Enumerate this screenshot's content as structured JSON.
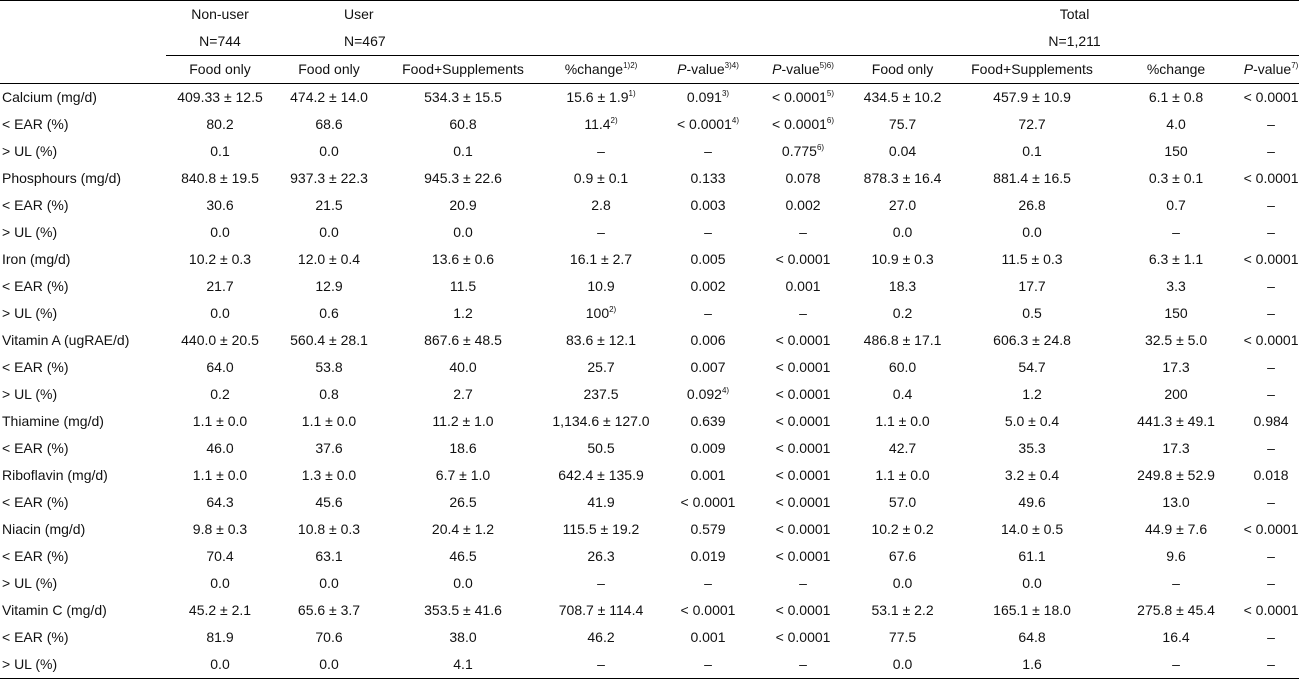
{
  "header": {
    "group_nonuser": "Non-user",
    "group_user": "User",
    "group_total": "Total",
    "n_nonuser": "N=744",
    "n_user": "N=467",
    "n_total": "N=1,211"
  },
  "subheaders": [
    {
      "text": "Food only",
      "it": "",
      "sup": ""
    },
    {
      "text": "Food only",
      "it": "",
      "sup": ""
    },
    {
      "text": "Food+Supplements",
      "it": "",
      "sup": ""
    },
    {
      "text": "%change",
      "it": "",
      "sup": "1)2)"
    },
    {
      "text": "-value",
      "it": "P",
      "sup": "3)4)"
    },
    {
      "text": "-value",
      "it": "P",
      "sup": "5)6)"
    },
    {
      "text": "Food only",
      "it": "",
      "sup": ""
    },
    {
      "text": "Food+Supplements",
      "it": "",
      "sup": ""
    },
    {
      "text": "%change",
      "it": "",
      "sup": ""
    },
    {
      "text": "-value",
      "it": "P",
      "sup": "7)"
    }
  ],
  "rows": [
    {
      "label": "Calcium (mg/d)",
      "cells": [
        {
          "v": "409.33 ± 12.5"
        },
        {
          "v": "474.2 ± 14.0"
        },
        {
          "v": "534.3 ± 15.5"
        },
        {
          "v": "15.6 ± 1.9",
          "s": "1)"
        },
        {
          "v": "0.091",
          "s": "3)"
        },
        {
          "v": "< 0.0001",
          "s": "5)"
        },
        {
          "v": "434.5 ± 10.2"
        },
        {
          "v": "457.9 ± 10.9"
        },
        {
          "v": "6.1 ± 0.8"
        },
        {
          "v": "< 0.0001"
        }
      ]
    },
    {
      "label": "< EAR (%)",
      "cells": [
        {
          "v": "80.2"
        },
        {
          "v": "68.6"
        },
        {
          "v": "60.8"
        },
        {
          "v": "11.4",
          "s": "2)"
        },
        {
          "v": "< 0.0001",
          "s": "4)"
        },
        {
          "v": "< 0.0001",
          "s": "6)"
        },
        {
          "v": "75.7"
        },
        {
          "v": "72.7"
        },
        {
          "v": "4.0"
        },
        {
          "v": "–"
        }
      ]
    },
    {
      "label": "> UL (%)",
      "cells": [
        {
          "v": "0.1"
        },
        {
          "v": "0.0"
        },
        {
          "v": "0.1"
        },
        {
          "v": "–"
        },
        {
          "v": "–"
        },
        {
          "v": "0.775",
          "s": "6)"
        },
        {
          "v": "0.04"
        },
        {
          "v": "0.1"
        },
        {
          "v": "150"
        },
        {
          "v": "–"
        }
      ]
    },
    {
      "label": "Phosphours (mg/d)",
      "cells": [
        {
          "v": "840.8 ± 19.5"
        },
        {
          "v": "937.3 ± 22.3"
        },
        {
          "v": "945.3 ± 22.6"
        },
        {
          "v": "0.9 ± 0.1"
        },
        {
          "v": "0.133"
        },
        {
          "v": "0.078"
        },
        {
          "v": "878.3 ± 16.4"
        },
        {
          "v": "881.4 ± 16.5"
        },
        {
          "v": "0.3 ± 0.1"
        },
        {
          "v": "< 0.0001"
        }
      ]
    },
    {
      "label": "< EAR (%)",
      "cells": [
        {
          "v": "30.6"
        },
        {
          "v": "21.5"
        },
        {
          "v": "20.9"
        },
        {
          "v": "2.8"
        },
        {
          "v": "0.003"
        },
        {
          "v": "0.002"
        },
        {
          "v": "27.0"
        },
        {
          "v": "26.8"
        },
        {
          "v": "0.7"
        },
        {
          "v": "–"
        }
      ]
    },
    {
      "label": "> UL (%)",
      "cells": [
        {
          "v": "0.0"
        },
        {
          "v": "0.0"
        },
        {
          "v": "0.0"
        },
        {
          "v": "–"
        },
        {
          "v": "–"
        },
        {
          "v": "–"
        },
        {
          "v": "0.0"
        },
        {
          "v": "0.0"
        },
        {
          "v": "–"
        },
        {
          "v": "–"
        }
      ]
    },
    {
      "label": "Iron (mg/d)",
      "cells": [
        {
          "v": "10.2 ± 0.3"
        },
        {
          "v": "12.0 ± 0.4"
        },
        {
          "v": "13.6 ± 0.6"
        },
        {
          "v": "16.1 ± 2.7"
        },
        {
          "v": "0.005"
        },
        {
          "v": "< 0.0001"
        },
        {
          "v": "10.9 ± 0.3"
        },
        {
          "v": "11.5 ± 0.3"
        },
        {
          "v": "6.3 ± 1.1"
        },
        {
          "v": "< 0.0001"
        }
      ]
    },
    {
      "label": "< EAR (%)",
      "cells": [
        {
          "v": "21.7"
        },
        {
          "v": "12.9"
        },
        {
          "v": "11.5"
        },
        {
          "v": "10.9"
        },
        {
          "v": "0.002"
        },
        {
          "v": "0.001"
        },
        {
          "v": "18.3"
        },
        {
          "v": "17.7"
        },
        {
          "v": "3.3"
        },
        {
          "v": "–"
        }
      ]
    },
    {
      "label": "> UL (%)",
      "cells": [
        {
          "v": "0.0"
        },
        {
          "v": "0.6"
        },
        {
          "v": "1.2"
        },
        {
          "v": "100",
          "s": "2)"
        },
        {
          "v": "–"
        },
        {
          "v": "–"
        },
        {
          "v": "0.2"
        },
        {
          "v": "0.5"
        },
        {
          "v": "150"
        },
        {
          "v": "–"
        }
      ]
    },
    {
      "label": "Vitamin A (ugRAE/d)",
      "cells": [
        {
          "v": "440.0 ± 20.5"
        },
        {
          "v": "560.4 ± 28.1"
        },
        {
          "v": "867.6 ± 48.5"
        },
        {
          "v": "83.6 ± 12.1"
        },
        {
          "v": "0.006"
        },
        {
          "v": "< 0.0001"
        },
        {
          "v": "486.8 ± 17.1"
        },
        {
          "v": "606.3 ± 24.8"
        },
        {
          "v": "32.5 ± 5.0"
        },
        {
          "v": "< 0.0001"
        }
      ]
    },
    {
      "label": "< EAR (%)",
      "cells": [
        {
          "v": "64.0"
        },
        {
          "v": "53.8"
        },
        {
          "v": "40.0"
        },
        {
          "v": "25.7"
        },
        {
          "v": "0.007"
        },
        {
          "v": "< 0.0001"
        },
        {
          "v": "60.0"
        },
        {
          "v": "54.7"
        },
        {
          "v": "17.3"
        },
        {
          "v": "–"
        }
      ]
    },
    {
      "label": "> UL (%)",
      "cells": [
        {
          "v": "0.2"
        },
        {
          "v": "0.8"
        },
        {
          "v": "2.7"
        },
        {
          "v": "237.5"
        },
        {
          "v": "0.092",
          "s": "4)"
        },
        {
          "v": "< 0.0001"
        },
        {
          "v": "0.4"
        },
        {
          "v": "1.2"
        },
        {
          "v": "200"
        },
        {
          "v": "–"
        }
      ]
    },
    {
      "label": "Thiamine (mg/d)",
      "cells": [
        {
          "v": "1.1 ± 0.0"
        },
        {
          "v": "1.1 ± 0.0"
        },
        {
          "v": "11.2 ± 1.0"
        },
        {
          "v": "1,134.6 ± 127.0"
        },
        {
          "v": "0.639"
        },
        {
          "v": "< 0.0001"
        },
        {
          "v": "1.1 ± 0.0"
        },
        {
          "v": "5.0 ± 0.4"
        },
        {
          "v": "441.3 ± 49.1"
        },
        {
          "v": "0.984"
        }
      ]
    },
    {
      "label": "< EAR (%)",
      "cells": [
        {
          "v": "46.0"
        },
        {
          "v": "37.6"
        },
        {
          "v": "18.6"
        },
        {
          "v": "50.5"
        },
        {
          "v": "0.009"
        },
        {
          "v": "< 0.0001"
        },
        {
          "v": "42.7"
        },
        {
          "v": "35.3"
        },
        {
          "v": "17.3"
        },
        {
          "v": "–"
        }
      ]
    },
    {
      "label": "Riboflavin (mg/d)",
      "cells": [
        {
          "v": "1.1 ± 0.0"
        },
        {
          "v": "1.3 ± 0.0"
        },
        {
          "v": "6.7 ± 1.0"
        },
        {
          "v": "642.4 ± 135.9"
        },
        {
          "v": "0.001"
        },
        {
          "v": "< 0.0001"
        },
        {
          "v": "1.1 ± 0.0"
        },
        {
          "v": "3.2 ± 0.4"
        },
        {
          "v": "249.8 ± 52.9"
        },
        {
          "v": "0.018"
        }
      ]
    },
    {
      "label": "< EAR (%)",
      "cells": [
        {
          "v": "64.3"
        },
        {
          "v": "45.6"
        },
        {
          "v": "26.5"
        },
        {
          "v": "41.9"
        },
        {
          "v": "< 0.0001"
        },
        {
          "v": "< 0.0001"
        },
        {
          "v": "57.0"
        },
        {
          "v": "49.6"
        },
        {
          "v": "13.0"
        },
        {
          "v": "–"
        }
      ]
    },
    {
      "label": "Niacin (mg/d)",
      "cells": [
        {
          "v": "9.8 ± 0.3"
        },
        {
          "v": "10.8 ± 0.3"
        },
        {
          "v": "20.4 ± 1.2"
        },
        {
          "v": "115.5 ± 19.2"
        },
        {
          "v": "0.579"
        },
        {
          "v": "< 0.0001"
        },
        {
          "v": "10.2 ± 0.2"
        },
        {
          "v": "14.0 ± 0.5"
        },
        {
          "v": "44.9 ± 7.6"
        },
        {
          "v": "< 0.0001"
        }
      ]
    },
    {
      "label": "< EAR (%)",
      "cells": [
        {
          "v": "70.4"
        },
        {
          "v": "63.1"
        },
        {
          "v": "46.5"
        },
        {
          "v": "26.3"
        },
        {
          "v": "0.019"
        },
        {
          "v": "< 0.0001"
        },
        {
          "v": "67.6"
        },
        {
          "v": "61.1"
        },
        {
          "v": "9.6"
        },
        {
          "v": "–"
        }
      ]
    },
    {
      "label": "> UL (%)",
      "cells": [
        {
          "v": "0.0"
        },
        {
          "v": "0.0"
        },
        {
          "v": "0.0"
        },
        {
          "v": "–"
        },
        {
          "v": "–"
        },
        {
          "v": "–"
        },
        {
          "v": "0.0"
        },
        {
          "v": "0.0"
        },
        {
          "v": "–"
        },
        {
          "v": "–"
        }
      ]
    },
    {
      "label": "Vitamin C (mg/d)",
      "cells": [
        {
          "v": "45.2 ± 2.1"
        },
        {
          "v": "65.6 ± 3.7"
        },
        {
          "v": "353.5 ± 41.6"
        },
        {
          "v": "708.7 ± 114.4"
        },
        {
          "v": "< 0.0001"
        },
        {
          "v": "< 0.0001"
        },
        {
          "v": "53.1 ± 2.2"
        },
        {
          "v": "165.1 ± 18.0"
        },
        {
          "v": "275.8 ± 45.4"
        },
        {
          "v": "< 0.0001"
        }
      ]
    },
    {
      "label": "< EAR (%)",
      "cells": [
        {
          "v": "81.9"
        },
        {
          "v": "70.6"
        },
        {
          "v": "38.0"
        },
        {
          "v": "46.2"
        },
        {
          "v": "0.001"
        },
        {
          "v": "< 0.0001"
        },
        {
          "v": "77.5"
        },
        {
          "v": "64.8"
        },
        {
          "v": "16.4"
        },
        {
          "v": "–"
        }
      ]
    },
    {
      "label": "> UL (%)",
      "cells": [
        {
          "v": "0.0"
        },
        {
          "v": "0.0"
        },
        {
          "v": "4.1"
        },
        {
          "v": "–"
        },
        {
          "v": "–"
        },
        {
          "v": "–"
        },
        {
          "v": "0.0"
        },
        {
          "v": "1.6"
        },
        {
          "v": "–"
        },
        {
          "v": "–"
        }
      ]
    }
  ]
}
